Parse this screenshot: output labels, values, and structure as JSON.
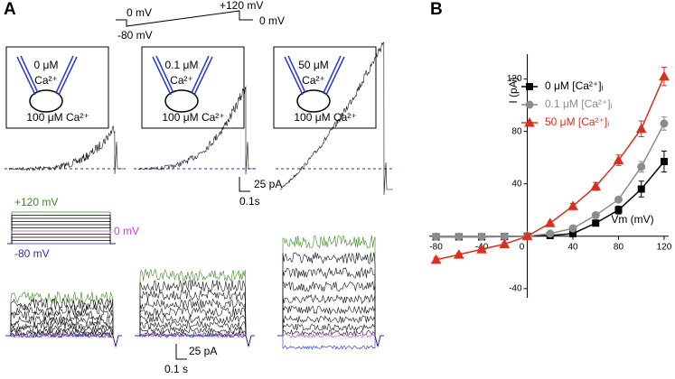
{
  "panel_labels": [
    "A",
    "B"
  ],
  "panel_a": {
    "ramp_protocol": {
      "start": "0 mV",
      "peak": "+120 mV",
      "end": "0 mV",
      "step": "-80 mV"
    },
    "cells": [
      {
        "pipette": "0 μM",
        "ion": "Ca²⁺",
        "bath": "100 μM Ca²⁺"
      },
      {
        "pipette": "0.1 μM",
        "ion": "Ca²⁺",
        "bath": "100 μM Ca²⁺"
      },
      {
        "pipette": "50 μM",
        "ion": "Ca²⁺",
        "bath": "100 μM Ca²⁺"
      }
    ],
    "ramp_scale": {
      "current": "25 pA",
      "time": "0.1s"
    },
    "step_protocol": {
      "top": "+120 mV",
      "middle": "0 mV",
      "bottom": "-80 mV"
    },
    "step_scale": {
      "current": "25 pA",
      "time": "0.1 s"
    }
  },
  "chart_data": {
    "type": "line",
    "xlabel": "Vm (mV)",
    "ylabel": "I (pA)",
    "x": [
      -80,
      -60,
      -40,
      -20,
      0,
      20,
      40,
      60,
      80,
      100,
      120
    ],
    "series": [
      {
        "name": "0 μM [Ca²⁺]ᵢ",
        "color": "#000000",
        "marker": "square",
        "values": [
          -0.5,
          -0.5,
          -0.5,
          -0.3,
          0,
          0.5,
          2,
          10,
          20,
          36,
          57
        ],
        "errors": [
          1,
          1,
          1,
          1,
          0,
          1,
          1,
          2,
          3,
          6,
          8
        ]
      },
      {
        "name": "0.1 μM [Ca²⁺]ᵢ",
        "color": "#8c8c8c",
        "marker": "circle",
        "values": [
          -0.3,
          -0.3,
          -0.3,
          -0.2,
          0,
          2,
          6,
          16,
          28,
          53,
          86
        ],
        "errors": [
          1,
          1,
          1,
          1,
          0,
          1,
          1,
          2,
          2,
          4,
          5
        ]
      },
      {
        "name": "50 μM [Ca²⁺]ᵢ",
        "color": "#d7301f",
        "marker": "triangle",
        "values": [
          -18,
          -14,
          -10,
          -6,
          0,
          10,
          23,
          38,
          58,
          82,
          122
        ],
        "errors": [
          2,
          1,
          1,
          1,
          0,
          1,
          2,
          3,
          4,
          6,
          7
        ]
      }
    ],
    "xlim": [
      -86,
      124
    ],
    "ylim": [
      -47,
      139
    ],
    "xticks": [
      -80,
      -40,
      0,
      40,
      80,
      120
    ],
    "yticks": [
      -40,
      40,
      80,
      120
    ],
    "legend": "upper-left"
  }
}
